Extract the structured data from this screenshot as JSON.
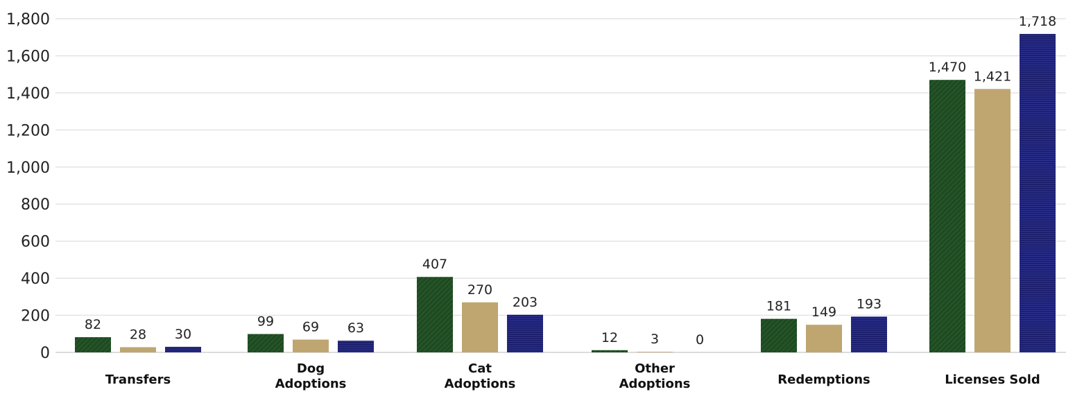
{
  "chart_data": {
    "type": "bar",
    "title": "",
    "xlabel": "",
    "ylabel": "",
    "ylim": [
      0,
      1800
    ],
    "yticks": [
      0,
      200,
      400,
      600,
      800,
      1000,
      1200,
      1400,
      1600,
      1800
    ],
    "ytick_labels": [
      "0",
      "200",
      "400",
      "600",
      "800",
      "1,000",
      "1,200",
      "1,400",
      "1,600",
      "1,800"
    ],
    "grid": true,
    "legend": "none",
    "categories": [
      [
        "Transfers"
      ],
      [
        "Dog",
        "Adoptions"
      ],
      [
        "Cat",
        "Adoptions"
      ],
      [
        "Other",
        "Adoptions"
      ],
      [
        "Redemptions"
      ],
      [
        "Licenses Sold"
      ]
    ],
    "series": [
      {
        "color": "#1f4a22",
        "pattern": "diagonal",
        "values": [
          82,
          99,
          407,
          12,
          181,
          1470
        ],
        "labels": [
          "82",
          "99",
          "407",
          "12",
          "181",
          "1,470"
        ]
      },
      {
        "color": "#bfa671",
        "pattern": "solid",
        "values": [
          28,
          69,
          270,
          3,
          149,
          1421
        ],
        "labels": [
          "28",
          "69",
          "270",
          "3",
          "149",
          "1,421"
        ]
      },
      {
        "color": "#1c1f6e",
        "pattern": "horizontal",
        "values": [
          30,
          63,
          203,
          0,
          193,
          1718
        ],
        "labels": [
          "30",
          "63",
          "203",
          "0",
          "193",
          "1,718"
        ]
      }
    ]
  }
}
